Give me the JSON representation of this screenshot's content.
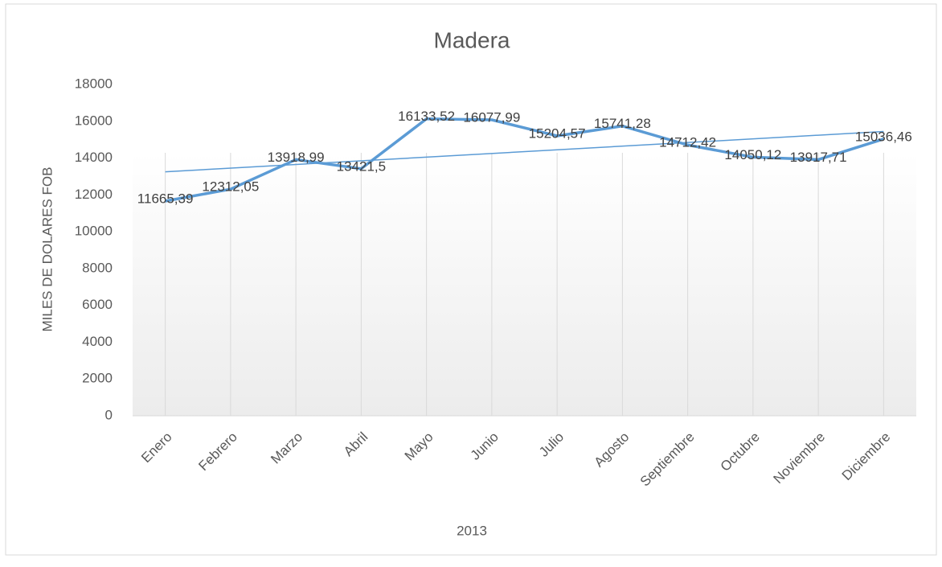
{
  "chart_data": {
    "type": "line",
    "title": "Madera",
    "xlabel": "2013",
    "ylabel": "MILES DE DOLARES FOB",
    "categories": [
      "Enero",
      "Febrero",
      "Marzo",
      "Abril",
      "Mayo",
      "Junio",
      "Julio",
      "Agosto",
      "Septiembre",
      "Octubre",
      "Noviembre",
      "Diciembre"
    ],
    "series": [
      {
        "name": "Madera",
        "color": "#5b9bd5",
        "values": [
          11665.39,
          12312.05,
          13918.99,
          13421.5,
          16133.52,
          16077.99,
          15204.57,
          15741.28,
          14712.42,
          14050.12,
          13917.71,
          15036.46
        ],
        "value_labels": [
          "11665,39",
          "12312,05",
          "13918,99",
          "13421,5",
          "16133,52",
          "16077,99",
          "15204,57",
          "15741,28",
          "14712,42",
          "14050,12",
          "13917,71",
          "15036,46"
        ]
      }
    ],
    "trendline": "linear",
    "ylim": [
      0,
      18000
    ],
    "yticks": [
      0,
      2000,
      4000,
      6000,
      8000,
      10000,
      12000,
      14000,
      16000,
      18000
    ]
  }
}
